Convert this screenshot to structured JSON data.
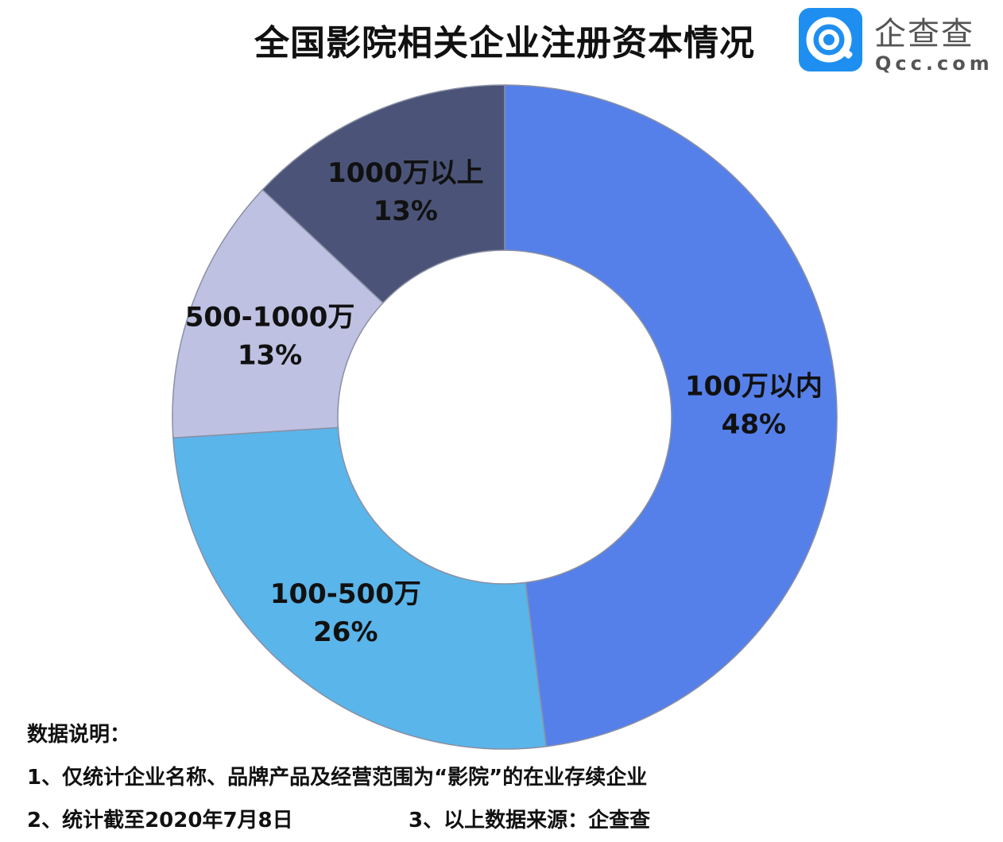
{
  "chart_data": {
    "type": "pie",
    "variant": "donut",
    "title": "全国影院相关企业注册资本情况",
    "categories": [
      "100万以内",
      "100-500万",
      "500-1000万",
      "1000万以上"
    ],
    "values": [
      48,
      26,
      13,
      13
    ],
    "value_labels": [
      "48%",
      "26%",
      "13%",
      "13%"
    ],
    "unit": "%",
    "colors": [
      "#5580ea",
      "#5ab5ea",
      "#bfc1e2",
      "#4b5478"
    ],
    "start_angle_deg": 0,
    "direction": "clockwise",
    "legend": "none"
  },
  "logo": {
    "name": "企查查",
    "url": "Qcc.com",
    "color": "#1e8ff0"
  },
  "notes": {
    "heading": "数据说明：",
    "item1": "1、仅统计企业名称、品牌产品及经营范围为“影院”的在业存续企业",
    "item2": "2、统计截至2020年7月8日",
    "item3": "3、以上数据来源：企查查"
  }
}
